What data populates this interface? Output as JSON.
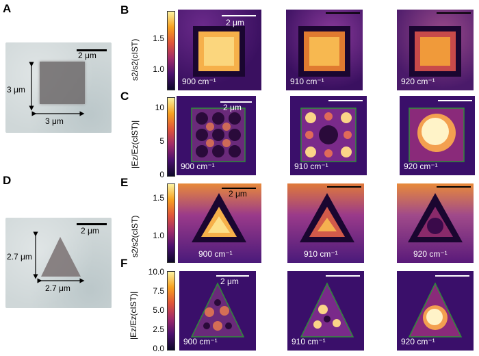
{
  "panel_letters": {
    "a": "A",
    "b": "B",
    "c": "C",
    "d": "D",
    "e": "E",
    "f": "F"
  },
  "panel_a": {
    "scale_bar": "2 μm",
    "height_label": "3 μm",
    "width_label": "3 μm"
  },
  "panel_d": {
    "scale_bar": "2 μm",
    "height_label": "2.7 μm",
    "width_label": "2.7 μm"
  },
  "panel_b": {
    "ylabel": "s2/s2(cIST)",
    "ticks": [
      "1.5",
      "1.0"
    ],
    "scale_bar": "2 μm",
    "wavenumbers": [
      "900 cm⁻¹",
      "910 cm⁻¹",
      "920 cm⁻¹"
    ]
  },
  "panel_c": {
    "ylabel": "|Ez/Ez(cIST)|",
    "ticks": [
      "10",
      "5",
      "0"
    ],
    "scale_bar": "2 μm",
    "wavenumbers": [
      "900 cm⁻¹",
      "910 cm⁻¹",
      "920 cm⁻¹"
    ]
  },
  "panel_e": {
    "ylabel": "s2/s2(cIST)",
    "ticks": [
      "1.5",
      "1.0"
    ],
    "scale_bar": "2 μm",
    "wavenumbers": [
      "900 cm⁻¹",
      "910 cm⁻¹",
      "920 cm⁻¹"
    ]
  },
  "panel_f": {
    "ylabel": "|Ez/Ez(cIST)|",
    "ticks": [
      "10.0",
      "7.5",
      "5.0",
      "2.5",
      "0.0"
    ],
    "scale_bar": "2 μm",
    "wavenumbers": [
      "900 cm⁻¹",
      "910 cm⁻¹",
      "920 cm⁻¹"
    ]
  },
  "colors": {
    "inferno_dark": "#1a0a3a",
    "inferno_mid": "#7a2a8a",
    "inferno_orange": "#f08a30",
    "inferno_light": "#fff4b0",
    "outline_green": "#2e8b3a"
  }
}
